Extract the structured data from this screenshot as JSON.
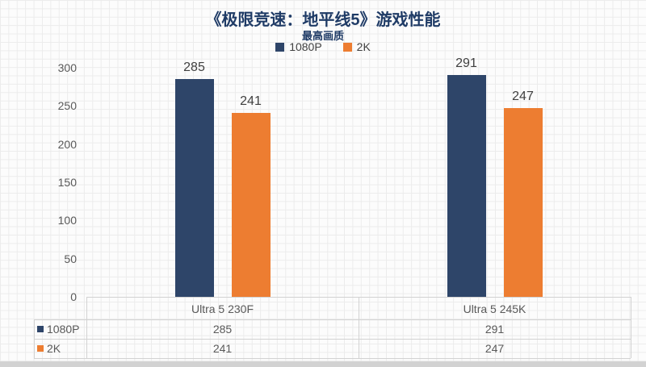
{
  "chart_data": {
    "type": "bar",
    "title": "《极限竞速：地平线5》游戏性能",
    "subtitle": "最高画质",
    "categories": [
      "Ultra 5 230F",
      "Ultra 5 245K"
    ],
    "series": [
      {
        "name": "1080P",
        "color": "#2e4569",
        "values": [
          285,
          291
        ]
      },
      {
        "name": "2K",
        "color": "#ed7d31",
        "values": [
          241,
          247
        ]
      }
    ],
    "ylim": [
      0,
      300
    ],
    "ytick_interval": 50,
    "yticks": [
      0,
      50,
      100,
      150,
      200,
      250,
      300
    ],
    "legend_position": "top-center",
    "gridlines": false,
    "show_data_table": true,
    "colors": {
      "title_text": "#1f3b66",
      "tick_text": "#595959",
      "data_label_text": "#404040",
      "axis_and_table_lines": "#d2d2d2",
      "background": "#fcfcfc",
      "background_grid_lines": "#ececec"
    }
  }
}
